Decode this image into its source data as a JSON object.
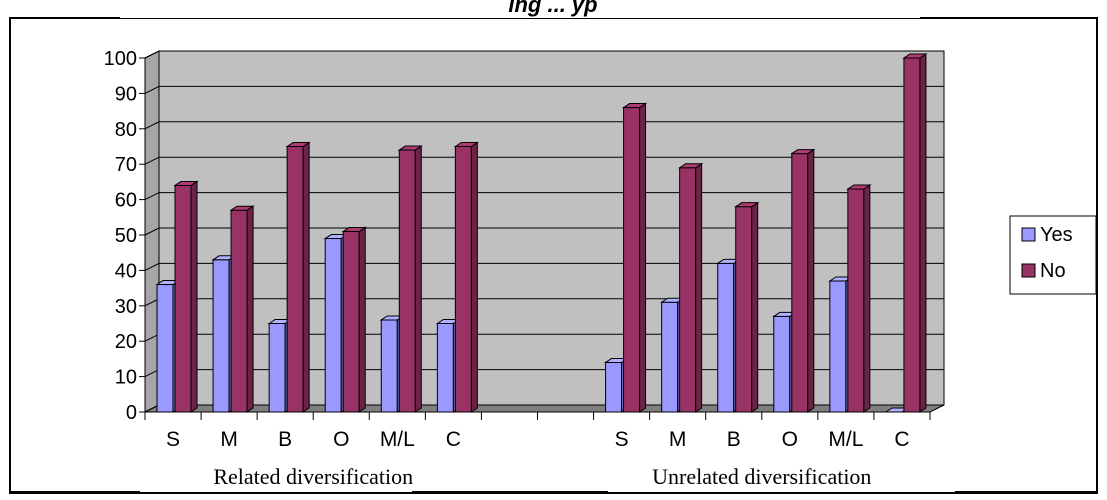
{
  "chart_data": {
    "type": "bar",
    "title": "ing        ...        yp",
    "ylim": [
      0,
      100
    ],
    "yticks": [
      0,
      10,
      20,
      30,
      40,
      50,
      60,
      70,
      80,
      90,
      100
    ],
    "grid": true,
    "legend_position": "right",
    "categories": [
      "S",
      "M",
      "B",
      "O",
      "M/L",
      "C",
      "",
      "",
      "S",
      "M",
      "B",
      "O",
      "M/L",
      "C"
    ],
    "groups": [
      {
        "label": "Related diversification",
        "span": [
          0,
          5
        ]
      },
      {
        "label": "Unrelated diversification",
        "span": [
          8,
          13
        ]
      }
    ],
    "series": [
      {
        "name": "Yes",
        "color": "#9999ff",
        "values": [
          36,
          43,
          25,
          49,
          26,
          25,
          null,
          null,
          14,
          31,
          42,
          27,
          37,
          0
        ]
      },
      {
        "name": "No",
        "color": "#993366",
        "values": [
          64,
          57,
          75,
          51,
          74,
          75,
          null,
          null,
          86,
          69,
          58,
          73,
          63,
          100
        ]
      }
    ]
  }
}
